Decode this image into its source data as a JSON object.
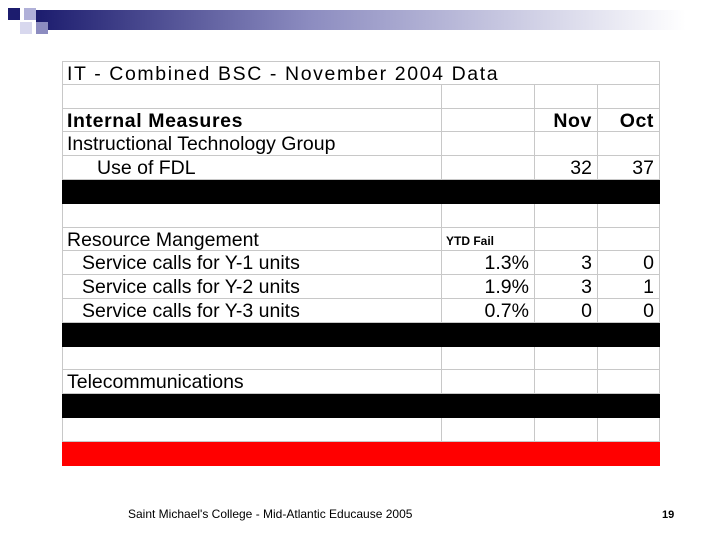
{
  "table": {
    "title": "IT - Combined BSC - November 2004 Data",
    "rows": [
      {},
      {
        "label": "Internal Measures",
        "nov": "Nov",
        "oct": "Oct"
      },
      {
        "label": "Instructional Technology Group"
      },
      {
        "label": "Use of FDL",
        "nov": "32",
        "oct": "37"
      },
      {
        "fill": "#000000"
      },
      {},
      {
        "label": "Resource Mangement",
        "ytd": "YTD Fail"
      },
      {
        "label": "Service calls for Y-1 units",
        "ytd": "1.3%",
        "nov": "3",
        "oct": "0"
      },
      {
        "label": "Service calls for Y-2 units",
        "ytd": "1.9%",
        "nov": "3",
        "oct": "1"
      },
      {
        "label": "Service calls for Y-3 units",
        "ytd": "0.7%",
        "nov": "0",
        "oct": "0"
      },
      {
        "fill": "#000000"
      },
      {},
      {
        "label": "Telecommunications"
      },
      {
        "fill": "#000000"
      },
      {},
      {
        "fill": "#ff0000"
      }
    ]
  },
  "footer": {
    "text": "Saint Michael's College - Mid-Atlantic Educause 2005",
    "page": "19"
  }
}
